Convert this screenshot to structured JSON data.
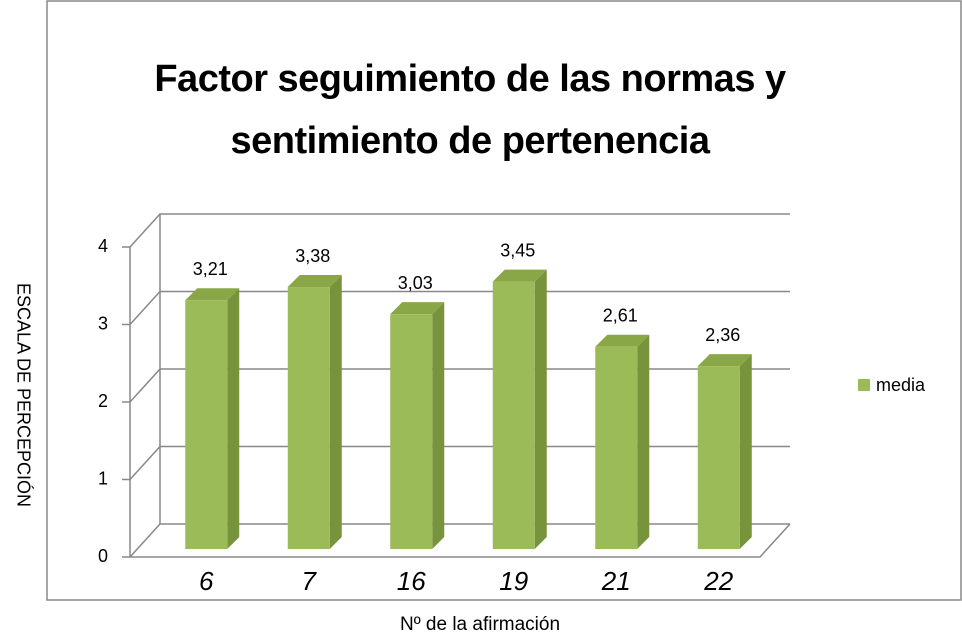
{
  "chart_data": {
    "type": "bar3d",
    "title": "Factor seguimiento de las normas y sentimiento de pertenencia",
    "y_label": "ESCALA DE PERCEPCIÓN",
    "x_label": "Nº de la afirmación",
    "categories": [
      "6",
      "7",
      "16",
      "19",
      "21",
      "22"
    ],
    "series": [
      {
        "name": "media",
        "color": "#9bbb59",
        "values": [
          3.21,
          3.38,
          3.03,
          3.45,
          2.61,
          2.36
        ],
        "value_labels": [
          "3,21",
          "3,38",
          "3,03",
          "3,45",
          "2,61",
          "2,36"
        ]
      }
    ],
    "ylim": [
      0,
      4
    ],
    "yticks": [
      0,
      1,
      2,
      3,
      4
    ],
    "grid": true,
    "legend": "right"
  }
}
